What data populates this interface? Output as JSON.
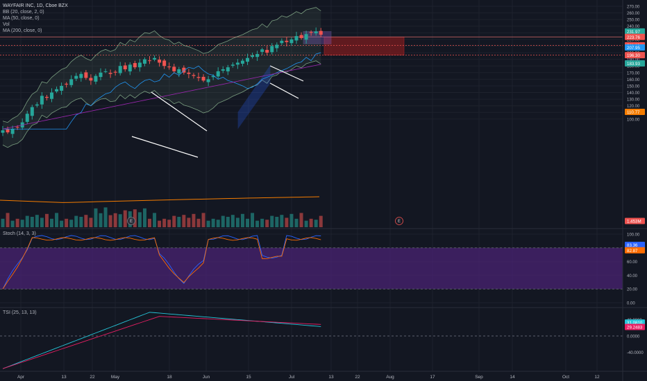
{
  "legend": {
    "title": "WAYFAIR INC, 1D, Cboe BZX",
    "indicators": [
      "BB (20, close, 2, 0)",
      "MA (50, close, 0)",
      "Vol",
      "MA (200, close, 0)"
    ],
    "stoch": "Stoch (14, 3, 3)",
    "tsi": "TSI (25, 13, 13)"
  },
  "colors": {
    "background": "#131722",
    "grid": "#1e222d",
    "up": "#26a69a",
    "down": "#ef5350",
    "bb": "#a5d6a7",
    "ma50": "#2196f3",
    "ma200": "#9c27b0",
    "ma_vol": "#f57c00",
    "stoch_k": "#2962ff",
    "stoch_d": "#ff6d00",
    "stoch_band": "#4a2373",
    "tsi": "#26c6da",
    "tsi_signal": "#e91e63",
    "zone": "#7a1b1e",
    "channel": "#2962ff",
    "pattern_lines": "#ffffff"
  },
  "chart_data": [
    {
      "type": "candlestick",
      "name": "price",
      "y_axis_ticks": [
        "270.00",
        "260.00",
        "250.00",
        "240.00",
        "230.00",
        "220.00",
        "210.00",
        "200.00",
        "190.00",
        "180.00",
        "170.00",
        "160.00",
        "150.00",
        "140.00",
        "130.00",
        "120.00",
        "110.00",
        "100.00"
      ],
      "x_axis_ticks": [
        "Apr",
        "13",
        "22",
        "May",
        "18",
        "Jun",
        "15",
        "Jul",
        "13",
        "22",
        "Aug",
        "17",
        "Sep",
        "14",
        "Oct",
        "12"
      ],
      "price_labels": [
        {
          "text": "231.97",
          "color": "#26a69a"
        },
        {
          "text": "223.76",
          "color": "#ef5350"
        },
        {
          "text": "211.19",
          "color": "#ef5350"
        },
        {
          "text": "207.95",
          "color": "#2196f3"
        },
        {
          "text": "196.30",
          "color": "#ef5350"
        },
        {
          "text": "184.06",
          "color": "#9c27b0"
        },
        {
          "text": "183.93",
          "color": "#26a69a"
        },
        {
          "text": "110.77",
          "color": "#f57c00"
        },
        {
          "text": "1.453M",
          "color": "#ef5350"
        }
      ],
      "earnings_markers": [
        "E",
        "E"
      ],
      "closes": [
        83,
        80,
        85,
        88,
        95,
        108,
        118,
        122,
        135,
        132,
        140,
        145,
        150,
        152,
        160,
        165,
        168,
        162,
        158,
        165,
        170,
        172,
        168,
        170,
        180,
        175,
        182,
        178,
        185,
        190,
        188,
        192,
        185,
        180,
        178,
        172,
        175,
        170,
        168,
        165,
        162,
        158,
        160,
        165,
        172,
        175,
        178,
        182,
        185,
        188,
        192,
        196,
        198,
        205,
        200,
        210,
        212,
        218,
        216,
        220,
        225,
        222,
        228,
        230,
        232,
        227
      ]
    },
    {
      "type": "line",
      "name": "stochastic",
      "y_axis_ticks": [
        "100.00",
        "80.00",
        "60.00",
        "40.00",
        "20.00",
        "0.00"
      ],
      "ylim": [
        0,
        100
      ],
      "bands": [
        20,
        80
      ],
      "price_labels": [
        {
          "text": "83.36",
          "color": "#2962ff"
        },
        {
          "text": "82.87",
          "color": "#ff6d00"
        }
      ]
    },
    {
      "type": "line",
      "name": "tsi",
      "y_axis_ticks": [
        "40.0000",
        "0.0000",
        "-40.0000"
      ],
      "price_labels": [
        {
          "text": "31.0810",
          "color": "#26c6da"
        },
        {
          "text": "29.2483",
          "color": "#e91e63"
        }
      ]
    }
  ]
}
